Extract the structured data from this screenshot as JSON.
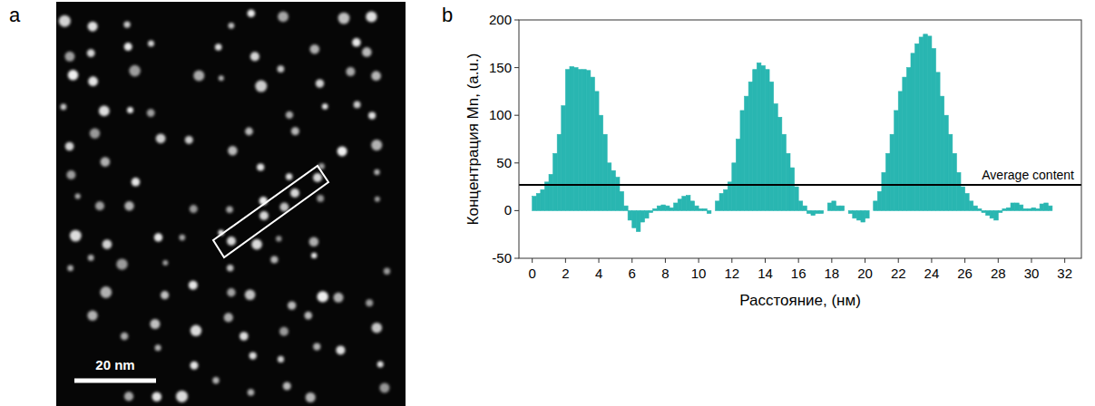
{
  "image": {
    "panel_label": "a",
    "scale_bar": "20 nm"
  },
  "chart_data": {
    "type": "histogram",
    "panel_label": "b",
    "x_label": "Расстояние, (нм)",
    "y_label": "Концентрация Mn, (a.u.)",
    "color": "#29b6b1",
    "grid": false,
    "xlim": [
      -0.8,
      33
    ],
    "ylim": [
      -50,
      200
    ],
    "xticks": [
      0,
      2,
      4,
      6,
      8,
      10,
      12,
      14,
      16,
      18,
      20,
      22,
      24,
      26,
      28,
      30,
      32
    ],
    "yticks": [
      -50,
      0,
      50,
      100,
      150,
      200
    ],
    "reference_line": {
      "value": 27,
      "label": "Average content"
    },
    "bins": [
      0,
      0.25,
      0.5,
      0.75,
      1,
      1.25,
      1.5,
      1.75,
      2,
      2.25,
      2.5,
      2.75,
      3,
      3.25,
      3.5,
      3.75,
      4,
      4.25,
      4.5,
      4.75,
      5,
      5.25,
      5.5,
      5.75,
      6,
      6.25,
      6.5,
      6.75,
      7,
      7.25,
      7.5,
      7.75,
      8,
      8.25,
      8.5,
      8.75,
      9,
      9.25,
      9.5,
      9.75,
      10,
      10.25,
      10.5,
      10.75,
      11,
      11.25,
      11.5,
      11.75,
      12,
      12.25,
      12.5,
      12.75,
      13,
      13.25,
      13.5,
      13.75,
      14,
      14.25,
      14.5,
      14.75,
      15,
      15.25,
      15.5,
      15.75,
      16,
      16.25,
      16.5,
      16.75,
      17,
      17.25,
      17.5,
      17.75,
      18,
      18.25,
      18.5,
      18.75,
      19,
      19.25,
      19.5,
      19.75,
      20,
      20.25,
      20.5,
      20.75,
      21,
      21.25,
      21.5,
      21.75,
      22,
      22.25,
      22.5,
      22.75,
      23,
      23.25,
      23.5,
      23.75,
      24,
      24.25,
      24.5,
      24.75,
      25,
      25.25,
      25.5,
      25.75,
      26,
      26.25,
      26.5,
      26.75,
      27,
      27.25,
      27.5,
      27.75,
      28,
      28.25,
      28.5,
      28.75,
      29,
      29.25,
      29.5,
      29.75,
      30,
      30.25,
      30.5,
      30.75,
      31,
      31.25
    ],
    "values": [
      15,
      18,
      22,
      30,
      38,
      60,
      80,
      110,
      148,
      151,
      150,
      148,
      148,
      147,
      140,
      125,
      100,
      80,
      50,
      42,
      35,
      20,
      5,
      -10,
      -18,
      -22,
      -12,
      -8,
      -2,
      2,
      5,
      6,
      5,
      3,
      8,
      12,
      15,
      16,
      10,
      5,
      2,
      2,
      -3,
      0,
      10,
      18,
      22,
      30,
      50,
      75,
      105,
      120,
      135,
      148,
      155,
      152,
      148,
      135,
      112,
      98,
      80,
      60,
      45,
      25,
      10,
      5,
      -3,
      -5,
      -3,
      -3,
      0,
      8,
      10,
      5,
      5,
      0,
      -3,
      -8,
      -10,
      -12,
      -8,
      0,
      10,
      20,
      40,
      60,
      80,
      105,
      125,
      140,
      150,
      165,
      175,
      182,
      185,
      183,
      170,
      145,
      120,
      100,
      80,
      60,
      40,
      25,
      18,
      10,
      5,
      2,
      -2,
      -5,
      -8,
      -10,
      -2,
      2,
      3,
      8,
      8,
      6,
      2,
      2,
      3,
      2,
      7,
      8,
      5
    ]
  }
}
